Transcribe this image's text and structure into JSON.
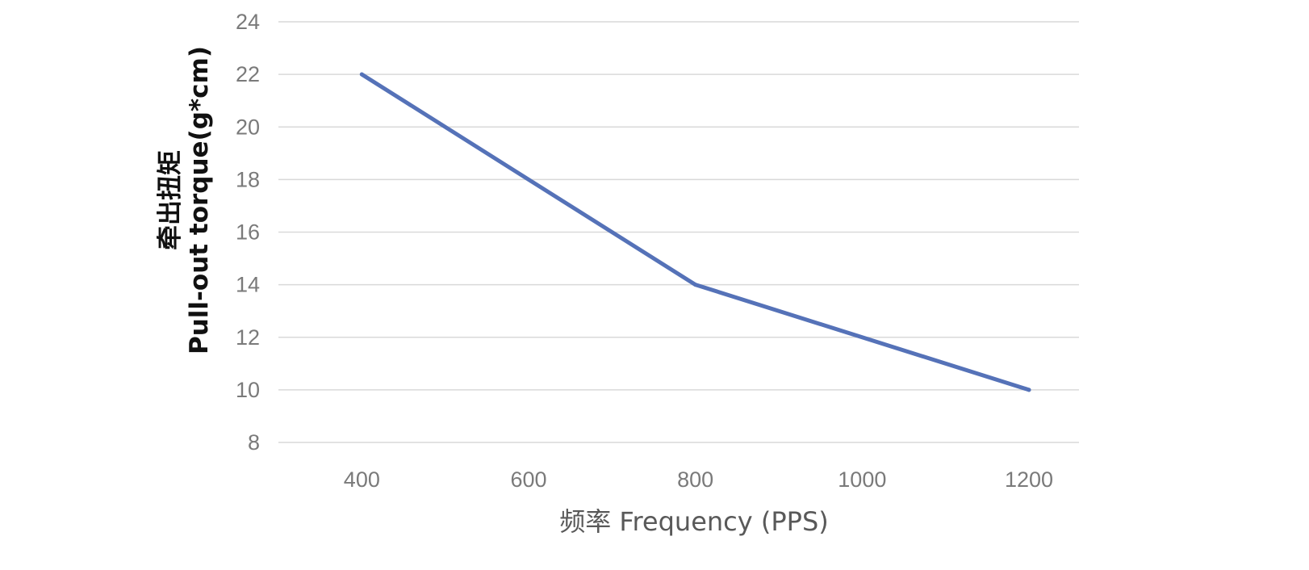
{
  "chart_data": {
    "type": "line",
    "title": "",
    "xlabel": "频率 Frequency (PPS)",
    "ylabel_line1": "牵出扭矩",
    "ylabel_line2": "Pull-out torque(g*cm)",
    "x": [
      400,
      800,
      1200
    ],
    "series": [
      {
        "values": [
          22,
          14,
          10
        ]
      }
    ],
    "xticks": [
      "400",
      "600",
      "800",
      "1000",
      "1200"
    ],
    "yticks": [
      "8",
      "10",
      "12",
      "14",
      "16",
      "18",
      "20",
      "22",
      "24"
    ],
    "xlim": [
      300,
      1260
    ],
    "ylim": [
      8,
      24
    ],
    "grid": "horizontal",
    "legend": "none",
    "colors": {
      "series": "#5572b8",
      "grid": "#d9d9d9",
      "tick_text": "#7a7a7a"
    }
  }
}
